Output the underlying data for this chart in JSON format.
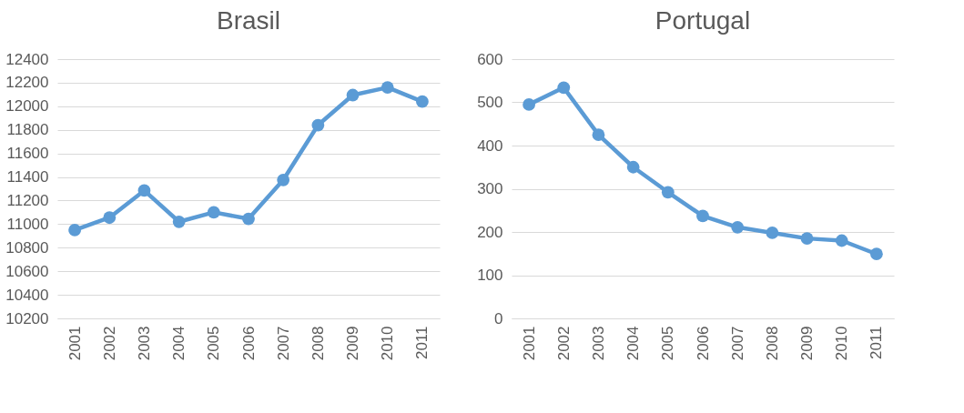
{
  "chart_data": [
    {
      "type": "line",
      "title": "Brasil",
      "categories": [
        "2001",
        "2002",
        "2003",
        "2004",
        "2005",
        "2006",
        "2007",
        "2008",
        "2009",
        "2010",
        "2011"
      ],
      "series": [
        {
          "color": "#5b9bd5",
          "values": [
            10950,
            11055,
            11285,
            11020,
            11100,
            11045,
            11375,
            11840,
            12095,
            12160,
            12040
          ]
        }
      ],
      "ylim": [
        10200,
        12400
      ],
      "yticks": [
        10200,
        10400,
        10600,
        10800,
        11000,
        11200,
        11400,
        11600,
        11800,
        12000,
        12200,
        12400
      ],
      "grid": "y",
      "marker": "circle"
    },
    {
      "type": "line",
      "title": "Portugal",
      "categories": [
        "2001",
        "2002",
        "2003",
        "2004",
        "2005",
        "2006",
        "2007",
        "2008",
        "2009",
        "2010",
        "2011"
      ],
      "series": [
        {
          "color": "#5b9bd5",
          "values": [
            495,
            534,
            425,
            350,
            292,
            237,
            211,
            198,
            185,
            180,
            149
          ]
        }
      ],
      "ylim": [
        0,
        600
      ],
      "yticks": [
        0,
        100,
        200,
        300,
        400,
        500,
        600
      ],
      "grid": "y",
      "marker": "circle"
    }
  ]
}
